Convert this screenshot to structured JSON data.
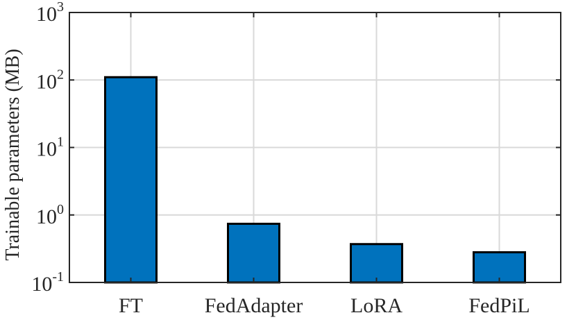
{
  "chart_data": {
    "type": "bar",
    "title": "",
    "xlabel": "",
    "ylabel": "Trainable parameters (MB)",
    "yscale": "log",
    "ylim": [
      0.1,
      1000
    ],
    "yticks": [
      {
        "value": 0.1,
        "base": "10",
        "exp": "-1"
      },
      {
        "value": 1,
        "base": "10",
        "exp": "0"
      },
      {
        "value": 10,
        "base": "10",
        "exp": "1"
      },
      {
        "value": 100,
        "base": "10",
        "exp": "2"
      },
      {
        "value": 1000,
        "base": "10",
        "exp": "3"
      }
    ],
    "categories": [
      "FT",
      "FedAdapter",
      "LoRA",
      "FedPiL"
    ],
    "values": [
      110,
      0.74,
      0.37,
      0.28
    ],
    "grid": true,
    "colors": {
      "bar": "#0072BD",
      "bar_edge": "#000000",
      "grid": "#d9d9d9",
      "axis": "#262626"
    }
  }
}
